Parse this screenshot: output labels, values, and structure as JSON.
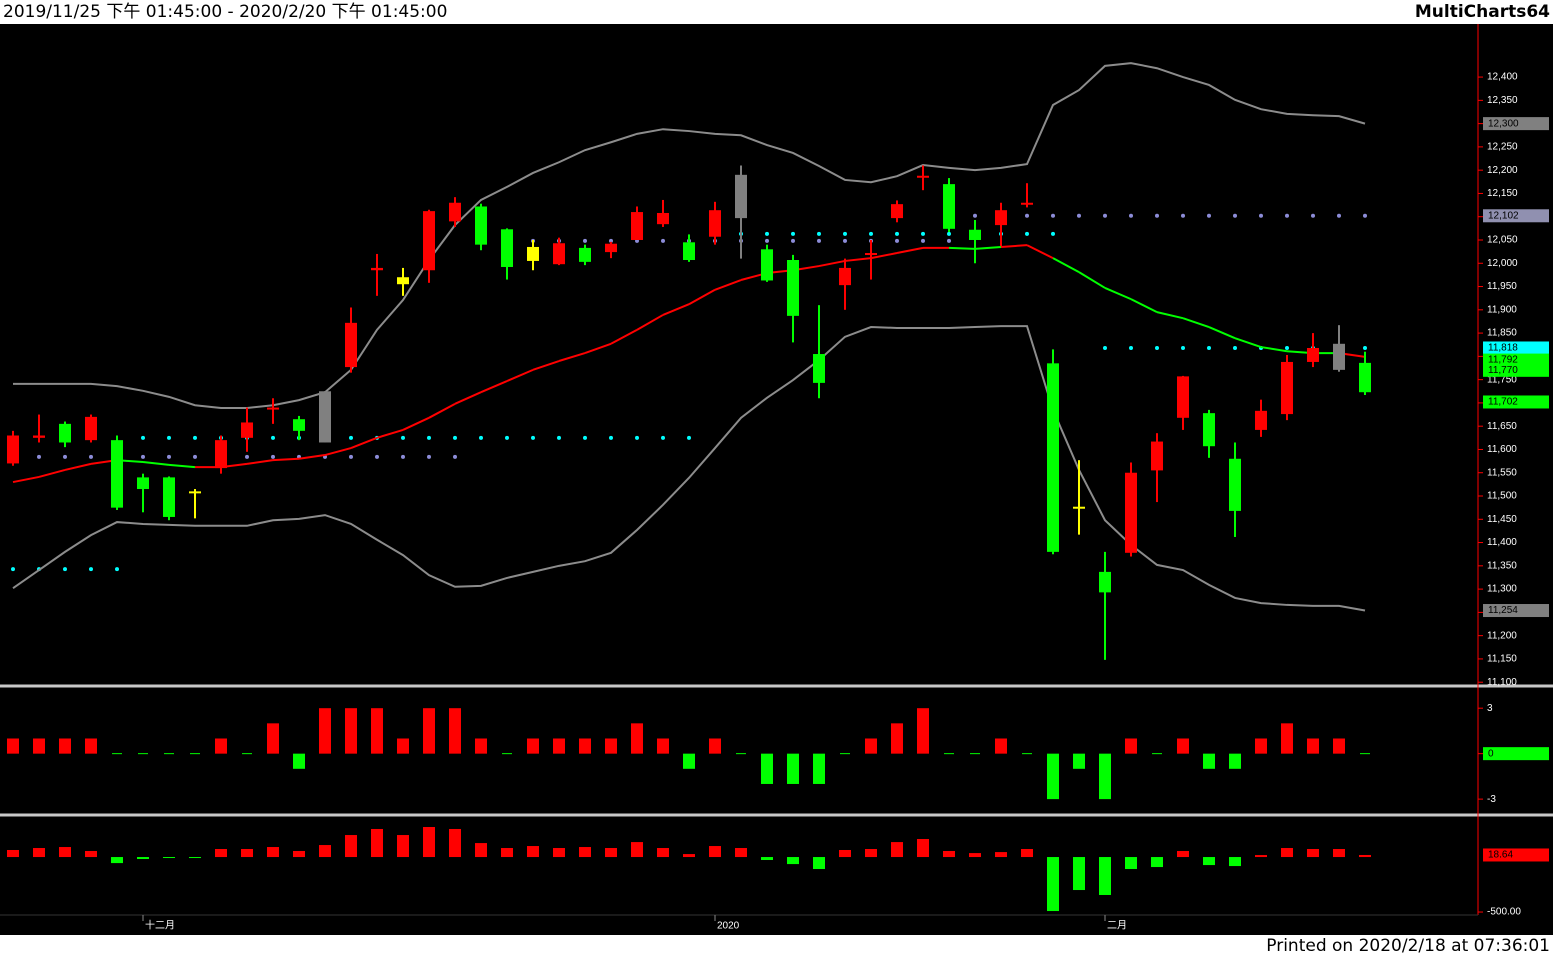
{
  "header": {
    "range": "2019/11/25 下午 01:45:00 - 2020/2/20 下午 01:45:00",
    "brand": "MultiCharts64"
  },
  "footer": "Printed on 2020/2/18 at 07:36:01",
  "chart_data": [
    {
      "type": "candlestick",
      "categories": [
        null,
        null,
        null,
        null,
        null,
        "十二月",
        null,
        null,
        null,
        null,
        null,
        null,
        null,
        null,
        null,
        null,
        null,
        null,
        null,
        null,
        null,
        null,
        null,
        null,
        null,
        null,
        null,
        "2020",
        null,
        null,
        null,
        null,
        null,
        null,
        null,
        null,
        null,
        null,
        null,
        null,
        null,
        null,
        "二月",
        null,
        null,
        null,
        null,
        null,
        null,
        null,
        null,
        null,
        null
      ],
      "series": [
        {
          "name": "open",
          "values": [
            11570,
            11625,
            11655,
            11620,
            11620,
            11540,
            11540,
            11510,
            11560,
            11625,
            11688,
            11665,
            11725,
            11777,
            11985,
            11955,
            11985,
            12090,
            12122,
            12073,
            12005,
            11998,
            12033,
            12024,
            12050,
            12084,
            12045,
            12057,
            12190,
            12030,
            12007,
            11805,
            11953,
            12020,
            12097,
            12185,
            12170,
            12072,
            12082,
            12127,
            11785,
            11477,
            11337,
            11378,
            11555,
            11668,
            11678,
            11580,
            11642,
            11676,
            11788,
            11827,
            11786
          ]
        },
        {
          "name": "high",
          "values": [
            11640,
            11675,
            11660,
            11675,
            11630,
            11548,
            11542,
            11515,
            11630,
            11690,
            11710,
            11672,
            11725,
            11905,
            12020,
            11990,
            12115,
            12142,
            12128,
            12075,
            12050,
            12055,
            12040,
            12046,
            12122,
            12136,
            12062,
            12132,
            12210,
            12040,
            12018,
            11910,
            12010,
            12050,
            12135,
            12210,
            12183,
            12093,
            12130,
            12172,
            11815,
            11577,
            11380,
            11572,
            11635,
            11758,
            11685,
            11615,
            11707,
            11803,
            11850,
            11867,
            11810
          ]
        },
        {
          "name": "low",
          "values": [
            11565,
            11615,
            11605,
            11615,
            11470,
            11465,
            11448,
            11452,
            11548,
            11595,
            11655,
            11620,
            11615,
            11765,
            11930,
            11930,
            11958,
            12078,
            12028,
            11965,
            11985,
            11996,
            11996,
            12011,
            12050,
            12078,
            12003,
            12040,
            12010,
            11960,
            11830,
            11710,
            11900,
            11965,
            12088,
            12157,
            12067,
            12000,
            12037,
            12120,
            11375,
            11417,
            11148,
            11370,
            11487,
            11642,
            11582,
            11412,
            11627,
            11663,
            11777,
            11767,
            11717
          ]
        },
        {
          "name": "close",
          "values": [
            11630,
            11630,
            11615,
            11670,
            11475,
            11515,
            11455,
            11510,
            11620,
            11658,
            11690,
            11640,
            11615,
            11872,
            11990,
            11970,
            12112,
            12130,
            12040,
            11992,
            12035,
            12043,
            12003,
            12042,
            12110,
            12108,
            12007,
            12114,
            12097,
            11963,
            11887,
            11743,
            11990,
            12022,
            12127,
            12188,
            12074,
            12050,
            12114,
            12130,
            11380,
            11477,
            11293,
            11550,
            11617,
            11757,
            11607,
            11468,
            11683,
            11788,
            11818,
            11771,
            11723
          ]
        }
      ],
      "colors": [
        "#ff0000",
        "#ff0000",
        "#00ff00",
        "#ff0000",
        "#00ff00",
        "#00ff00",
        "#00ff00",
        "#ffff00",
        "#ff0000",
        "#ff0000",
        "#ff0000",
        "#00ff00",
        "#808080",
        "#ff0000",
        "#ff0000",
        "#ffff00",
        "#ff0000",
        "#ff0000",
        "#00ff00",
        "#00ff00",
        "#ffff00",
        "#ff0000",
        "#00ff00",
        "#ff0000",
        "#ff0000",
        "#ff0000",
        "#00ff00",
        "#ff0000",
        "#808080",
        "#00ff00",
        "#00ff00",
        "#00ff00",
        "#ff0000",
        "#ff0000",
        "#ff0000",
        "#ff0000",
        "#00ff00",
        "#00ff00",
        "#ff0000",
        "#ff0000",
        "#00ff00",
        "#ffff00",
        "#00ff00",
        "#ff0000",
        "#ff0000",
        "#ff0000",
        "#00ff00",
        "#00ff00",
        "#ff0000",
        "#ff0000",
        "#ff0000",
        "#808080",
        "#00ff00"
      ],
      "bands": {
        "color": "#8c8c8c",
        "upper": [
          11741,
          11741,
          11741,
          11741,
          11736,
          11726,
          11713,
          11695,
          11689,
          11689,
          11695,
          11706,
          11723,
          11771,
          11857,
          11921,
          12007,
          12082,
          12136,
          12164,
          12194,
          12217,
          12243,
          12260,
          12278,
          12288,
          12284,
          12278,
          12275,
          12254,
          12237,
          12209,
          12179,
          12174,
          12187,
          12211,
          12205,
          12200,
          12205,
          12213,
          12340,
          12372,
          12424,
          12430,
          12419,
          12400,
          12383,
          12351,
          12331,
          12321,
          12318,
          12316,
          12300
        ],
        "lower": [
          11302,
          11341,
          11380,
          11416,
          11444,
          11440,
          11438,
          11436,
          11436,
          11436,
          11448,
          11451,
          11459,
          11440,
          11406,
          11373,
          11330,
          11305,
          11307,
          11324,
          11337,
          11350,
          11360,
          11378,
          11427,
          11481,
          11539,
          11603,
          11668,
          11711,
          11749,
          11792,
          11842,
          11863,
          11861,
          11861,
          11861,
          11863,
          11865,
          11865,
          11685,
          11556,
          11448,
          11395,
          11352,
          11341,
          11309,
          11281,
          11270,
          11266,
          11264,
          11264,
          11254
        ]
      },
      "ma": {
        "values": [
          11530,
          11541,
          11556,
          11569,
          11577,
          11573,
          11567,
          11562,
          11562,
          11569,
          11577,
          11580,
          11588,
          11603,
          11625,
          11642,
          11668,
          11698,
          11723,
          11747,
          11771,
          11790,
          11807,
          11827,
          11857,
          11889,
          11912,
          11943,
          11964,
          11979,
          11985,
          11994,
          12005,
          12011,
          12022,
          12033,
          12033,
          12031,
          12035,
          12039,
          12011,
          11981,
          11947,
          11923,
          11895,
          11882,
          11863,
          11839,
          11820,
          11811,
          11807,
          11807,
          11799
        ],
        "colors": [
          "#ff0000",
          "#ff0000",
          "#ff0000",
          "#ff0000",
          "#ff0000",
          "#00ff00",
          "#00ff00",
          "#00ff00",
          "#ff0000",
          "#ff0000",
          "#ff0000",
          "#ff0000",
          "#ff0000",
          "#ff0000",
          "#ff0000",
          "#ff0000",
          "#ff0000",
          "#ff0000",
          "#ff0000",
          "#ff0000",
          "#ff0000",
          "#ff0000",
          "#ff0000",
          "#ff0000",
          "#ff0000",
          "#ff0000",
          "#ff0000",
          "#ff0000",
          "#ff0000",
          "#ff0000",
          "#ff0000",
          "#ff0000",
          "#ff0000",
          "#ff0000",
          "#ff0000",
          "#ff0000",
          "#ff0000",
          "#00ff00",
          "#00ff00",
          "#ff0000",
          "#ff0000",
          "#00ff00",
          "#00ff00",
          "#00ff00",
          "#00ff00",
          "#00ff00",
          "#00ff00",
          "#00ff00",
          "#00ff00",
          "#00ff00",
          "#00ff00",
          "#00ff00",
          "#ff0000"
        ]
      },
      "levels": [
        {
          "value": 11343,
          "from": 0,
          "to": 4,
          "color": "#00ffff"
        },
        {
          "value": 11584,
          "from": 0,
          "to": 17,
          "color": "#8c8cd8"
        },
        {
          "value": 11625,
          "from": 5,
          "to": 26,
          "color": "#00ffff"
        },
        {
          "value": 12048,
          "from": 19,
          "to": 36,
          "color": "#8c8cd8"
        },
        {
          "value": 12063,
          "from": 27,
          "to": 40,
          "color": "#00ffff"
        },
        {
          "value": 12102,
          "from": 37,
          "to": 52,
          "color": "#8c8cd8"
        },
        {
          "value": 11818,
          "from": 42,
          "to": 52,
          "color": "#00ffff"
        }
      ],
      "markers": [
        {
          "value": 12300,
          "label": "12,300",
          "color": "#808080"
        },
        {
          "value": 12102,
          "label": "12,102",
          "color": "#9090b0"
        },
        {
          "value": 11818,
          "label": "11,818",
          "color": "#00ffff"
        },
        {
          "value": 11792,
          "label": "11,792",
          "color": "#00ff00"
        },
        {
          "value": 11770,
          "label": "11,770",
          "color": "#00ff00"
        },
        {
          "value": 11702,
          "label": "11,702",
          "color": "#00ff00"
        },
        {
          "value": 11254,
          "label": "11,254",
          "color": "#808080"
        }
      ],
      "ylim": [
        11094,
        12514
      ],
      "yticks": [
        {
          "value": 11100,
          "label": "11,100"
        },
        {
          "value": 11150,
          "label": "11,150"
        },
        {
          "value": 11200,
          "label": "11,200"
        },
        {
          "value": 11250,
          "label": "11,250"
        },
        {
          "value": 11300,
          "label": "11,300"
        },
        {
          "value": 11350,
          "label": "11,350"
        },
        {
          "value": 11400,
          "label": "11,400"
        },
        {
          "value": 11450,
          "label": "11,450"
        },
        {
          "value": 11500,
          "label": "11,500"
        },
        {
          "value": 11550,
          "label": "11,550"
        },
        {
          "value": 11600,
          "label": "11,600"
        },
        {
          "value": 11650,
          "label": "11,650"
        },
        {
          "value": 11700,
          "label": "11,700"
        },
        {
          "value": 11750,
          "label": "11,750"
        },
        {
          "value": 11800,
          "label": "11,800"
        },
        {
          "value": 11850,
          "label": "11,850"
        },
        {
          "value": 11900,
          "label": "11,900"
        },
        {
          "value": 11950,
          "label": "11,950"
        },
        {
          "value": 12000,
          "label": "12,000"
        },
        {
          "value": 12050,
          "label": "12,050"
        },
        {
          "value": 12100,
          "label": "12,100"
        },
        {
          "value": 12150,
          "label": "12,150"
        },
        {
          "value": 12200,
          "label": "12,200"
        },
        {
          "value": 12250,
          "label": "12,250"
        },
        {
          "value": 12300,
          "label": "12,300"
        },
        {
          "value": 12350,
          "label": "12,350"
        },
        {
          "value": 12400,
          "label": "12,400"
        }
      ]
    },
    {
      "type": "bar",
      "values": [
        1,
        1,
        1,
        1,
        0,
        0,
        0,
        0,
        1,
        0,
        2,
        -1,
        3,
        3,
        3,
        1,
        3,
        3,
        1,
        0,
        1,
        1,
        1,
        1,
        2,
        1,
        -1,
        1,
        0,
        -2,
        -2,
        -2,
        0,
        1,
        2,
        3,
        0,
        0,
        1,
        0,
        -3,
        -1,
        -3,
        1,
        0,
        1,
        -1,
        -1,
        1,
        2,
        1,
        1,
        0
      ],
      "up_color": "#ff0000",
      "down_color": "#00ff00",
      "ylim": [
        -3.85,
        4.2
      ],
      "yticks": [
        3,
        0,
        -3
      ],
      "markers": [
        {
          "value": 0,
          "label": "0",
          "color": "#00ff00"
        }
      ]
    },
    {
      "type": "bar",
      "values": [
        64,
        82,
        91,
        55,
        -55,
        -18,
        -9,
        -9,
        73,
        73,
        91,
        55,
        109,
        200,
        255,
        200,
        273,
        255,
        127,
        82,
        100,
        82,
        91,
        82,
        136,
        82,
        27,
        100,
        82,
        -27,
        -64,
        -109,
        64,
        73,
        136,
        164,
        55,
        36,
        45,
        73,
        -491,
        -300,
        -345,
        -109,
        -91,
        55,
        -73,
        -82,
        18,
        82,
        73,
        73,
        18.64
      ],
      "up_color": "#ff0000",
      "down_color": "#00ff00",
      "ylim": [
        -527,
        364
      ],
      "yticks": [
        {
          "value": -500,
          "label": "-500.00"
        }
      ],
      "markers": [
        {
          "value": 18.64,
          "label": "18.64",
          "color": "#ff0000"
        }
      ]
    }
  ]
}
